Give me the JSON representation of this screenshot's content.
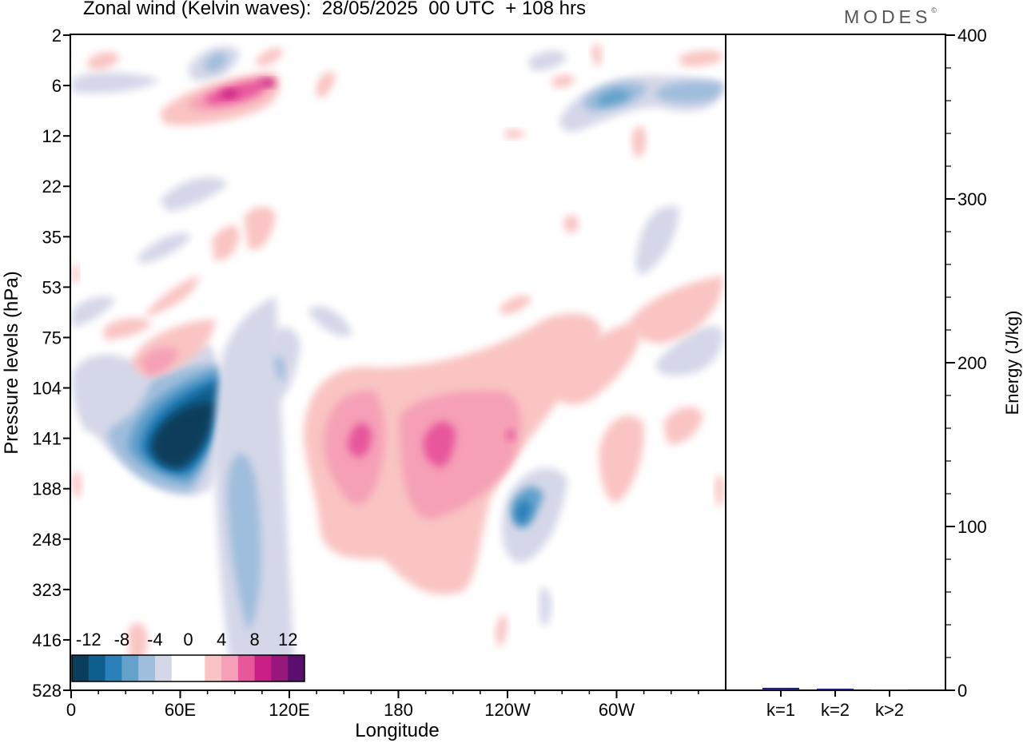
{
  "title": "Zonal wind (Kelvin waves):  28/05/2025  00 UTC  + 108 hrs",
  "brand": "MODES",
  "brand_mark": "©",
  "colors": {
    "neg": [
      "#0c3d5a",
      "#0e5f8f",
      "#2a80b9",
      "#64a1cb",
      "#9fbddc",
      "#d4d7e8"
    ],
    "pos": [
      "#f9c4c3",
      "#f5a0b6",
      "#e8569b",
      "#c91e86",
      "#98177b",
      "#5a0f6e"
    ],
    "bar": "#1c1c80"
  },
  "chart_data": [
    {
      "type": "heatmap",
      "title": "Zonal wind (Kelvin waves):  28/05/2025  00 UTC  + 108 hrs",
      "xlabel": "Longitude",
      "ylabel": "Pressure levels (hPa)",
      "x_ticks": [
        "0",
        "60E",
        "120E",
        "180",
        "120W",
        "60W"
      ],
      "x_values": [
        0,
        60,
        120,
        180,
        240,
        300
      ],
      "xlim": [
        0,
        360
      ],
      "y_ticks": [
        "2",
        "6",
        "12",
        "22",
        "35",
        "53",
        "75",
        "104",
        "141",
        "188",
        "248",
        "323",
        "416",
        "528"
      ],
      "y_scale": "pressure levels, top = 2 hPa, bottom = 528 hPa",
      "colorbar": {
        "labels": [
          "-12",
          "-8",
          "-4",
          "0",
          "4",
          "8",
          "12"
        ],
        "levels": [
          -14,
          -12,
          -10,
          -8,
          -6,
          -4,
          -2,
          0,
          2,
          4,
          6,
          8,
          10,
          12,
          14
        ]
      },
      "features": [
        {
          "x": 55,
          "y": 141,
          "value": -14
        },
        {
          "x": 93,
          "y": 75,
          "value": 4
        },
        {
          "x": 165,
          "y": 141,
          "value": 8
        },
        {
          "x": 200,
          "y": 141,
          "value": 8
        },
        {
          "x": 253,
          "y": 188,
          "value": -8
        },
        {
          "x": 90,
          "y": 6,
          "value": 10
        },
        {
          "x": 300,
          "y": 6,
          "value": -6
        }
      ]
    },
    {
      "type": "bar",
      "ylabel": "Energy (J/kg)",
      "categories": [
        "k=1",
        "k=2",
        "k>2"
      ],
      "values": [
        1.5,
        1,
        0.5
      ],
      "ylim": [
        0,
        400
      ],
      "y_ticks": [
        "0",
        "100",
        "200",
        "300",
        "400"
      ]
    }
  ]
}
